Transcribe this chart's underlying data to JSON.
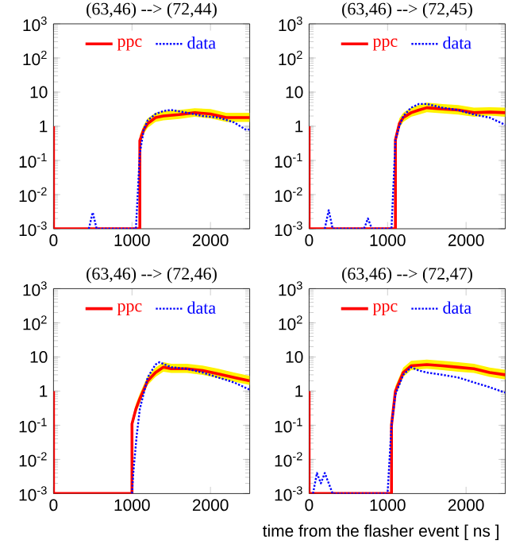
{
  "chart_data": [
    {
      "type": "line",
      "title": "(63,46) --> (72,44)",
      "log": true,
      "legend": "top",
      "xlim": [
        0,
        2500
      ],
      "ylim": [
        0.001,
        1000
      ],
      "xticks": [
        0,
        1000,
        2000
      ],
      "yticks": [
        {
          "value": 0.001,
          "label": "10$^{-3}$"
        },
        {
          "value": 0.01,
          "label": "10$^{-2}$"
        },
        {
          "value": 0.1,
          "label": "10$^{-1}$"
        },
        {
          "value": 1,
          "label": "1"
        },
        {
          "value": 10,
          "label": "10"
        },
        {
          "value": 100,
          "label": "10$^{2}$"
        },
        {
          "value": 1000,
          "label": "10$^{3}$"
        }
      ],
      "series": [
        {
          "name": "ppc",
          "color": "#ff0000",
          "line_style": "solid",
          "x": [
            0,
            0,
            1100,
            1100,
            1150,
            1200,
            1300,
            1400,
            1600,
            1800,
            2000,
            2200,
            2400,
            2500
          ],
          "values": [
            1,
            0.001,
            0.001,
            0.38,
            0.8,
            1.2,
            1.8,
            2,
            2.2,
            2.5,
            2.3,
            1.8,
            1.8,
            1.8
          ],
          "upper": [
            null,
            null,
            null,
            0.55,
            1.1,
            1.7,
            2.5,
            2.8,
            3,
            3.4,
            3.2,
            2.5,
            2.5,
            2.5
          ],
          "lower": [
            null,
            null,
            null,
            0.28,
            0.6,
            0.9,
            1.35,
            1.5,
            1.65,
            1.9,
            1.7,
            1.35,
            1.35,
            1.35
          ]
        },
        {
          "name": "data",
          "color": "#0000ff",
          "line_style": "dotted",
          "x": [
            450,
            500,
            550,
            1050,
            1100,
            1150,
            1200,
            1300,
            1400,
            1500,
            1700,
            1900,
            2100,
            2300,
            2450,
            2500
          ],
          "values": [
            0.001,
            0.003,
            0.001,
            0.001,
            0.16,
            0.8,
            1.5,
            2.3,
            2.8,
            3,
            2.5,
            2,
            1.8,
            1.3,
            0.8,
            0.8
          ]
        }
      ]
    },
    {
      "type": "line",
      "title": "(63,46) --> (72,45)",
      "log": true,
      "legend": "top",
      "xlim": [
        0,
        2500
      ],
      "ylim": [
        0.001,
        1000
      ],
      "xticks": [
        0,
        1000,
        2000
      ],
      "yticks": [
        {
          "value": 0.001,
          "label": "10$^{-3}$"
        },
        {
          "value": 0.01,
          "label": "10$^{-2}$"
        },
        {
          "value": 0.1,
          "label": "10$^{-1}$"
        },
        {
          "value": 1,
          "label": "1"
        },
        {
          "value": 10,
          "label": "10"
        },
        {
          "value": 100,
          "label": "10$^{2}$"
        },
        {
          "value": 1000,
          "label": "10$^{3}$"
        }
      ],
      "series": [
        {
          "name": "ppc",
          "color": "#ff0000",
          "line_style": "solid",
          "x": [
            0,
            0,
            1100,
            1100,
            1150,
            1200,
            1300,
            1400,
            1500,
            1700,
            1900,
            2100,
            2300,
            2500
          ],
          "values": [
            1,
            0.001,
            0.001,
            0.4,
            1.2,
            1.8,
            2.5,
            3,
            3.5,
            3.2,
            3,
            2.5,
            2.6,
            2.5
          ],
          "upper": [
            null,
            null,
            null,
            0.55,
            1.7,
            2.5,
            3.5,
            4.2,
            4.9,
            4.5,
            4.2,
            3.5,
            3.6,
            3.5
          ],
          "lower": [
            null,
            null,
            null,
            0.3,
            0.9,
            1.35,
            1.9,
            2.2,
            2.6,
            2.4,
            2.2,
            1.9,
            2.05,
            1.9
          ]
        },
        {
          "name": "data",
          "color": "#0000ff",
          "line_style": "dotted",
          "x": [
            200,
            250,
            300,
            700,
            750,
            800,
            1050,
            1100,
            1150,
            1200,
            1300,
            1400,
            1500,
            1700,
            1900,
            2100,
            2300,
            2500
          ],
          "values": [
            0.001,
            0.0035,
            0.001,
            0.001,
            0.002,
            0.001,
            0.001,
            0.4,
            1,
            2,
            3.5,
            4.5,
            4.5,
            3.5,
            3,
            2.2,
            1.8,
            1.1
          ]
        }
      ]
    },
    {
      "type": "line",
      "title": "(63,46) --> (72,46)",
      "log": true,
      "legend": "top",
      "xlim": [
        0,
        2500
      ],
      "ylim": [
        0.001,
        1000
      ],
      "xticks": [
        0,
        1000,
        2000
      ],
      "yticks": [
        {
          "value": 0.001,
          "label": "10$^{-3}$"
        },
        {
          "value": 0.01,
          "label": "10$^{-2}$"
        },
        {
          "value": 0.1,
          "label": "10$^{-1}$"
        },
        {
          "value": 1,
          "label": "1"
        },
        {
          "value": 10,
          "label": "10"
        },
        {
          "value": 100,
          "label": "10$^{2}$"
        },
        {
          "value": 1000,
          "label": "10$^{3}$"
        }
      ],
      "series": [
        {
          "name": "ppc",
          "color": "#ff0000",
          "line_style": "solid",
          "x": [
            0,
            0,
            1000,
            1000,
            1050,
            1100,
            1200,
            1300,
            1400,
            1500,
            1700,
            1900,
            2100,
            2300,
            2500
          ],
          "values": [
            1,
            0.001,
            0.001,
            0.11,
            0.3,
            0.6,
            2,
            3.5,
            5,
            4.5,
            4.5,
            4,
            3.2,
            2.5,
            2
          ],
          "upper": [
            null,
            null,
            null,
            0.15,
            0.42,
            0.85,
            2.8,
            4.9,
            7,
            6.3,
            6.3,
            5.6,
            4.5,
            3.5,
            2.8
          ],
          "lower": [
            null,
            null,
            null,
            0.08,
            0.22,
            0.45,
            1.5,
            2.6,
            3.7,
            3.4,
            3.4,
            3,
            2.4,
            1.9,
            1.5
          ]
        },
        {
          "name": "data",
          "color": "#0000ff",
          "line_style": "dotted",
          "x": [
            1000,
            1020,
            1060,
            1100,
            1200,
            1300,
            1350,
            1500,
            1700,
            1900,
            2100,
            2300,
            2500
          ],
          "values": [
            0.001,
            0.005,
            0.05,
            0.3,
            2.5,
            6,
            7,
            5,
            4.5,
            3.5,
            2.5,
            1.8,
            1.1
          ]
        }
      ]
    },
    {
      "type": "line",
      "title": "(63,46) --> (72,47)",
      "xlabel": "time from the flasher event [ ns ]",
      "log": true,
      "legend": "top",
      "xlim": [
        0,
        2500
      ],
      "ylim": [
        0.001,
        1000
      ],
      "xticks": [
        0,
        1000,
        2000
      ],
      "yticks": [
        {
          "value": 0.001,
          "label": "10$^{-3}$"
        },
        {
          "value": 0.01,
          "label": "10$^{-2}$"
        },
        {
          "value": 0.1,
          "label": "10$^{-1}$"
        },
        {
          "value": 1,
          "label": "1"
        },
        {
          "value": 10,
          "label": "10"
        },
        {
          "value": 100,
          "label": "10$^{2}$"
        },
        {
          "value": 1000,
          "label": "10$^{3}$"
        }
      ],
      "series": [
        {
          "name": "ppc",
          "color": "#ff0000",
          "line_style": "solid",
          "x": [
            0,
            0,
            1050,
            1050,
            1100,
            1200,
            1300,
            1500,
            1700,
            1900,
            2100,
            2300,
            2500
          ],
          "values": [
            1,
            0.001,
            0.001,
            0.1,
            1,
            3.5,
            5.5,
            6,
            5.5,
            5,
            4.5,
            3.5,
            3
          ],
          "upper": [
            null,
            null,
            null,
            0.14,
            1.4,
            4.9,
            7.7,
            8.4,
            7.7,
            7,
            6.3,
            4.9,
            4.2
          ],
          "lower": [
            null,
            null,
            null,
            0.075,
            0.75,
            2.6,
            4.1,
            4.5,
            4.1,
            3.7,
            3.4,
            2.6,
            2.2
          ]
        },
        {
          "name": "data",
          "color": "#0000ff",
          "line_style": "dotted",
          "x": [
            50,
            100,
            150,
            200,
            250,
            300,
            1000,
            1050,
            1100,
            1200,
            1300,
            1400,
            1500,
            1700,
            1900,
            2100,
            2300,
            2500
          ],
          "values": [
            0.001,
            0.004,
            0.002,
            0.004,
            0.002,
            0.001,
            0.001,
            0.1,
            0.8,
            3,
            5,
            4,
            3.5,
            3,
            2.5,
            1.8,
            1.3,
            0.9
          ]
        }
      ]
    }
  ]
}
